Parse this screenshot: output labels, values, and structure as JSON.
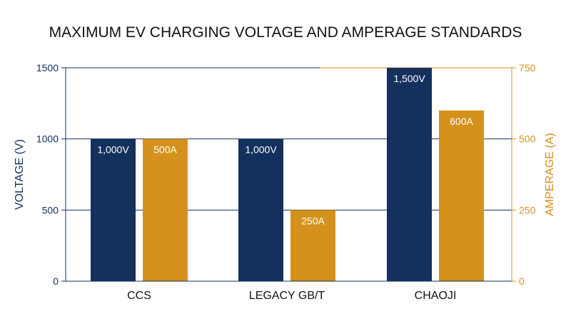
{
  "colors": {
    "voltage": "#14305c",
    "amperage": "#d4921c",
    "grid": "#14305c",
    "text": "#111111",
    "bar_label": "#ffffff"
  },
  "chart_data": {
    "type": "bar",
    "title": "MAXIMUM EV CHARGING VOLTAGE AND AMPERAGE STANDARDS",
    "categories": [
      "CCS",
      "LEGACY GB/T",
      "CHAOJI"
    ],
    "ylabel": "VOLTAGE (V)",
    "y2label": "AMPERAGE (A)",
    "ylim": [
      0,
      1500
    ],
    "y2lim": [
      0,
      750
    ],
    "yticks": [
      "0",
      "500",
      "1000",
      "1500"
    ],
    "y2ticks": [
      "0",
      "250",
      "500",
      "750"
    ],
    "grid": true,
    "series": [
      {
        "axis": "left",
        "values": [
          1000,
          1000,
          1500
        ],
        "labels": [
          "1,000V",
          "1,000V",
          "1,500V"
        ]
      },
      {
        "axis": "right",
        "values": [
          500,
          250,
          600
        ],
        "labels": [
          "500A",
          "250A",
          "600A"
        ]
      }
    ]
  }
}
